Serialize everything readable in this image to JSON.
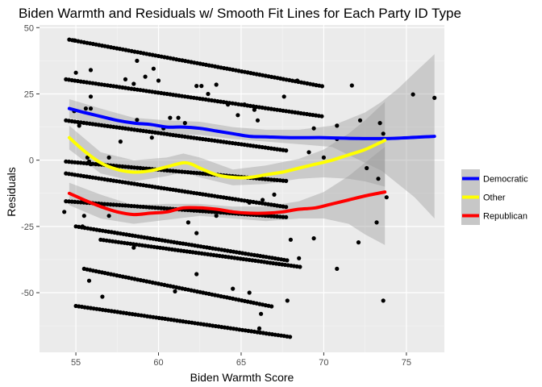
{
  "chart_data": {
    "type": "scatter",
    "title": "Biden Warmth and Residuals w/ Smooth Fit Lines for Each Party ID Type",
    "xlabel": "Biden Warmth Score",
    "ylabel": "Residuals",
    "xlim": [
      52.8,
      77.3
    ],
    "ylim": [
      -72.5,
      51
    ],
    "x_ticks": [
      55,
      60,
      65,
      70,
      75
    ],
    "x_tick_labels": [
      "55",
      "60",
      "65",
      "70",
      "75"
    ],
    "y_ticks": [
      -50,
      -25,
      0,
      25,
      50
    ],
    "y_tick_labels": [
      "-50",
      "-25",
      "0",
      "25",
      "50"
    ],
    "grid": true,
    "legend_position": "right",
    "band_lines": [
      {
        "x_start": 54.6,
        "x_end": 69.9,
        "y_start": 45.5,
        "slope": -1.15
      },
      {
        "x_start": 54.4,
        "x_end": 69.9,
        "y_start": 30.5,
        "slope": -0.9
      },
      {
        "x_start": 54.4,
        "x_end": 67.8,
        "y_start": 15.0,
        "slope": -0.85
      },
      {
        "x_start": 54.4,
        "x_end": 67.8,
        "y_start": -0.5,
        "slope": -0.55
      },
      {
        "x_start": 54.4,
        "x_end": 67.8,
        "y_start": -5.0,
        "slope": -0.95
      },
      {
        "x_start": 54.4,
        "x_end": 67.8,
        "y_start": -15.5,
        "slope": -0.45
      },
      {
        "x_start": 55.0,
        "x_end": 67.8,
        "y_start": -25.0,
        "slope": -1.0
      },
      {
        "x_start": 56.5,
        "x_end": 68.6,
        "y_start": -30.0,
        "slope": -0.85
      },
      {
        "x_start": 55.5,
        "x_end": 67.0,
        "y_start": -41.0,
        "slope": -1.25
      },
      {
        "x_start": 55.0,
        "x_end": 68.0,
        "y_start": -55.0,
        "slope": -0.9
      }
    ],
    "scattered_points": [
      [
        54.9,
        45.2
      ],
      [
        55.0,
        33.0
      ],
      [
        55.9,
        34.0
      ],
      [
        55.9,
        19.5
      ],
      [
        55.6,
        19.5
      ],
      [
        55.9,
        24.0
      ],
      [
        54.9,
        18.5
      ],
      [
        55.2,
        13.0
      ],
      [
        55.7,
        1.0
      ],
      [
        55.8,
        -0.5
      ],
      [
        55.9,
        -1.5
      ],
      [
        56.4,
        -1.5
      ],
      [
        57.0,
        1.0
      ],
      [
        57.7,
        7.0
      ],
      [
        58.7,
        15.2
      ],
      [
        59.6,
        8.5
      ],
      [
        60.3,
        12.0
      ],
      [
        60.0,
        30.0
      ],
      [
        58.0,
        30.5
      ],
      [
        58.5,
        28.8
      ],
      [
        59.2,
        31.5
      ],
      [
        59.7,
        34.5
      ],
      [
        58.7,
        37.5
      ],
      [
        60.7,
        16.0
      ],
      [
        61.2,
        16.0
      ],
      [
        61.6,
        14.0
      ],
      [
        62.3,
        28.0
      ],
      [
        62.6,
        28.0
      ],
      [
        63.0,
        25.0
      ],
      [
        63.5,
        28.5
      ],
      [
        64.2,
        21.0
      ],
      [
        65.2,
        21.0
      ],
      [
        64.8,
        17.0
      ],
      [
        66.0,
        15.0
      ],
      [
        65.8,
        19.0
      ],
      [
        67.6,
        24.0
      ],
      [
        68.4,
        30.0
      ],
      [
        69.4,
        12.0
      ],
      [
        70.8,
        13.0
      ],
      [
        71.7,
        28.2
      ],
      [
        69.1,
        3.0
      ],
      [
        70.0,
        1.0
      ],
      [
        70.8,
        8.0
      ],
      [
        72.2,
        15.0
      ],
      [
        72.6,
        -3.0
      ],
      [
        73.3,
        -7.0
      ],
      [
        73.4,
        14.0
      ],
      [
        73.6,
        10.0
      ],
      [
        73.8,
        -14.0
      ],
      [
        75.4,
        24.8
      ],
      [
        76.7,
        23.5
      ],
      [
        54.3,
        -19.5
      ],
      [
        55.5,
        -21.0
      ],
      [
        55.4,
        -25.0
      ],
      [
        57.0,
        -21.0
      ],
      [
        58.5,
        -33.0
      ],
      [
        61.8,
        -23.5
      ],
      [
        62.3,
        -27.5
      ],
      [
        63.5,
        -21.0
      ],
      [
        64.8,
        -20.0
      ],
      [
        65.5,
        -16.0
      ],
      [
        66.3,
        -15.0
      ],
      [
        67.0,
        -13.0
      ],
      [
        68.0,
        -30.0
      ],
      [
        68.5,
        -37.0
      ],
      [
        69.4,
        -29.5
      ],
      [
        70.8,
        -41.0
      ],
      [
        72.1,
        -31.0
      ],
      [
        73.2,
        -23.5
      ],
      [
        73.6,
        -53.0
      ],
      [
        55.8,
        -45.5
      ],
      [
        56.6,
        -51.5
      ],
      [
        61.0,
        -49.5
      ],
      [
        62.3,
        -43.0
      ],
      [
        64.5,
        -48.5
      ],
      [
        66.2,
        -58.0
      ],
      [
        67.8,
        -53.0
      ],
      [
        66.1,
        -63.5
      ],
      [
        65.5,
        -50.0
      ]
    ],
    "series": [
      {
        "name": "Democratic",
        "color": "#0000ff",
        "x": [
          54.6,
          55.5,
          56.5,
          57.5,
          58.5,
          59.5,
          60.5,
          61.5,
          62.5,
          63.5,
          64.5,
          65.5,
          66.5,
          68.0,
          70.0,
          72.0,
          74.0,
          76.7
        ],
        "y": [
          19.5,
          18.0,
          16.5,
          15.0,
          14.0,
          13.5,
          12.5,
          12.5,
          12.0,
          11.0,
          10.0,
          9.0,
          8.8,
          8.5,
          8.5,
          8.2,
          8.2,
          9.0
        ]
      },
      {
        "name": "Other",
        "color": "#ffff00",
        "x": [
          54.6,
          55.5,
          56.5,
          57.5,
          58.5,
          59.5,
          60.5,
          61.5,
          62.0,
          62.5,
          63.5,
          64.5,
          65.5,
          66.5,
          67.5,
          68.5,
          69.5,
          70.5,
          71.5,
          72.5,
          73.7
        ],
        "y": [
          8.5,
          3.5,
          -1.0,
          -3.5,
          -4.5,
          -4.0,
          -2.5,
          -1.0,
          -1.5,
          -3.0,
          -5.5,
          -6.5,
          -6.5,
          -5.5,
          -4.5,
          -3.0,
          -1.5,
          0.0,
          2.0,
          4.0,
          7.5
        ]
      },
      {
        "name": "Republican",
        "color": "#ff0000",
        "x": [
          54.6,
          55.5,
          56.5,
          57.5,
          58.5,
          59.5,
          60.5,
          61.5,
          62.5,
          63.5,
          64.5,
          65.5,
          66.5,
          67.5,
          68.5,
          69.5,
          70.5,
          71.5,
          72.5,
          73.7
        ],
        "y": [
          -12.5,
          -15.0,
          -17.5,
          -19.5,
          -20.5,
          -20.0,
          -19.5,
          -18.0,
          -18.0,
          -18.5,
          -19.5,
          -20.0,
          -20.0,
          -19.5,
          -18.5,
          -18.0,
          -16.5,
          -15.0,
          -13.5,
          -12.0
        ]
      }
    ],
    "confidence_bands": [
      {
        "series": "Democratic",
        "x": [
          54.6,
          56.5,
          58.5,
          60.5,
          62.5,
          64.5,
          66.5,
          68.5,
          70.5,
          71.5,
          72.5,
          73.5,
          74.5,
          75.5,
          76.7
        ],
        "upper": [
          23.0,
          19.5,
          16.0,
          15.0,
          14.5,
          12.5,
          11.5,
          11.5,
          13.0,
          15.5,
          18.0,
          22.0,
          27.0,
          33.0,
          40.0
        ],
        "lower": [
          16.0,
          13.5,
          12.0,
          10.0,
          9.5,
          8.0,
          7.0,
          6.0,
          5.0,
          2.0,
          -1.0,
          -4.0,
          -9.0,
          -14.0,
          -22.0
        ]
      },
      {
        "series": "Other",
        "x": [
          54.6,
          56.5,
          58.5,
          60.5,
          61.5,
          62.5,
          64.5,
          66.5,
          68.5,
          70.0,
          71.5,
          72.5,
          73.7
        ],
        "upper": [
          13.0,
          3.0,
          0.0,
          1.0,
          2.5,
          1.0,
          -3.5,
          -2.0,
          0.5,
          4.0,
          10.0,
          15.0,
          22.0
        ],
        "lower": [
          4.0,
          -5.0,
          -8.0,
          -6.0,
          -4.5,
          -6.5,
          -9.5,
          -9.0,
          -7.0,
          -6.5,
          -7.0,
          -8.0,
          -10.0
        ]
      },
      {
        "series": "Republican",
        "x": [
          54.6,
          56.5,
          58.5,
          60.5,
          62.5,
          64.5,
          66.5,
          68.5,
          70.0,
          71.5,
          72.5,
          73.7
        ],
        "upper": [
          -8.5,
          -13.0,
          -17.0,
          -16.5,
          -16.5,
          -17.5,
          -17.5,
          -15.5,
          -12.0,
          -6.0,
          -1.0,
          5.0
        ],
        "lower": [
          -17.0,
          -22.0,
          -24.0,
          -22.5,
          -21.0,
          -22.0,
          -23.0,
          -22.0,
          -22.0,
          -24.0,
          -28.0,
          -32.0
        ]
      }
    ]
  }
}
